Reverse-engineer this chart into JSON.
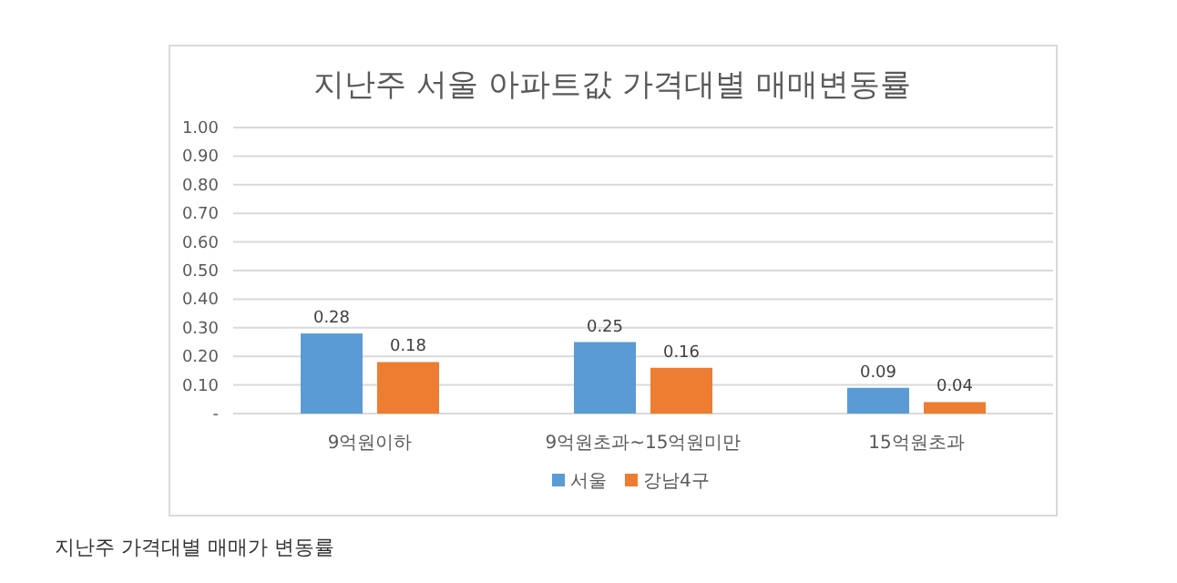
{
  "chart_data": {
    "type": "bar",
    "title": "지난주 서울 아파트값 가격대별 매매변동률",
    "categories": [
      "9억원이하",
      "9억원초과~15억원미만",
      "15억원초과"
    ],
    "series": [
      {
        "name": "서울",
        "color": "#5b9bd5",
        "values": [
          0.28,
          0.25,
          0.09
        ]
      },
      {
        "name": "강남4구",
        "color": "#ed7d31",
        "values": [
          0.18,
          0.16,
          0.04
        ]
      }
    ],
    "ylim": [
      0,
      1
    ],
    "yticks": [
      {
        "value": 0,
        "label": "-"
      },
      {
        "value": 0.1,
        "label": "0.10"
      },
      {
        "value": 0.2,
        "label": "0.20"
      },
      {
        "value": 0.3,
        "label": "0.30"
      },
      {
        "value": 0.4,
        "label": "0.40"
      },
      {
        "value": 0.5,
        "label": "0.50"
      },
      {
        "value": 0.6,
        "label": "0.60"
      },
      {
        "value": 0.7,
        "label": "0.70"
      },
      {
        "value": 0.8,
        "label": "0.80"
      },
      {
        "value": 0.9,
        "label": "0.90"
      },
      {
        "value": 1,
        "label": "1.00"
      }
    ],
    "grid": "y",
    "legend": "bottom",
    "data_labels": true,
    "annotations": [
      "지난주 가격대별 매매가 변동률"
    ]
  }
}
